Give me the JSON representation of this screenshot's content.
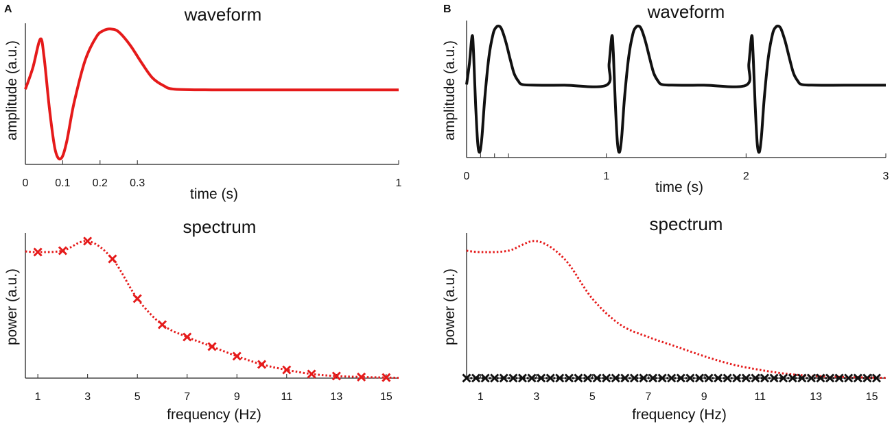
{
  "panels": {
    "a": "A",
    "b": "B"
  },
  "chart_data": [
    {
      "id": "A-waveform",
      "type": "line",
      "title": "waveform",
      "xlabel": "time (s)",
      "ylabel": "amplitude (a.u.)",
      "xlim": [
        0,
        1
      ],
      "ylim": [
        -1.05,
        0.92
      ],
      "xticks": [
        "0",
        "0.1",
        "0.2",
        "0.3",
        "1"
      ],
      "xtick_values": [
        0,
        0.1,
        0.2,
        0.3,
        1
      ],
      "color": "#e51a1a",
      "series": [
        {
          "name": "waveform",
          "x": [
            0,
            0.02,
            0.04,
            0.05,
            0.065,
            0.08,
            0.095,
            0.11,
            0.13,
            0.16,
            0.19,
            0.21,
            0.23,
            0.25,
            0.28,
            0.31,
            0.34,
            0.37,
            0.4,
            0.5,
            0.7,
            1.0
          ],
          "y": [
            0.0,
            0.3,
            0.7,
            0.45,
            -0.3,
            -0.85,
            -0.97,
            -0.75,
            -0.2,
            0.4,
            0.73,
            0.82,
            0.84,
            0.8,
            0.62,
            0.38,
            0.16,
            0.05,
            0.0,
            -0.01,
            -0.01,
            -0.01
          ]
        }
      ]
    },
    {
      "id": "B-waveform",
      "type": "line",
      "title": "waveform",
      "xlabel": "time (s)",
      "ylabel": "amplitude (a.u.)",
      "xlim": [
        0,
        3
      ],
      "ylim": [
        -1.05,
        0.92
      ],
      "xticks": [
        "0",
        "1",
        "2",
        "3"
      ],
      "xtick_values": [
        0,
        1,
        2,
        3
      ],
      "minor_ticks": [
        0.1,
        0.2,
        0.3
      ],
      "color": "#111111",
      "series": [
        {
          "name": "periodic waveform (period 1 s)",
          "x": [
            0,
            0.02,
            0.04,
            0.05,
            0.065,
            0.08,
            0.095,
            0.11,
            0.13,
            0.16,
            0.19,
            0.21,
            0.23,
            0.25,
            0.28,
            0.31,
            0.34,
            0.37,
            0.4,
            0.5,
            0.7,
            1.0
          ],
          "y": [
            0.0,
            0.3,
            0.7,
            0.45,
            -0.3,
            -0.85,
            -0.97,
            -0.75,
            -0.2,
            0.4,
            0.73,
            0.82,
            0.84,
            0.8,
            0.62,
            0.38,
            0.16,
            0.05,
            0.0,
            -0.01,
            -0.01,
            -0.01
          ],
          "repeat": 3
        }
      ]
    },
    {
      "id": "A-spectrum",
      "type": "line",
      "title": "spectrum",
      "xlabel": "frequency (Hz)",
      "ylabel": "power (a.u.)",
      "xlim": [
        0.5,
        15.5
      ],
      "ylim": [
        0,
        1.06
      ],
      "xticks": [
        "1",
        "3",
        "5",
        "7",
        "9",
        "11",
        "13",
        "15"
      ],
      "xtick_values": [
        1,
        3,
        5,
        7,
        9,
        11,
        13,
        15
      ],
      "color": "#e51a1a",
      "series": [
        {
          "name": "spectrum",
          "x": [
            1,
            2,
            3,
            4,
            5,
            6,
            7,
            8,
            9,
            10,
            11,
            12,
            13,
            14,
            15
          ],
          "y": [
            0.92,
            0.93,
            1.0,
            0.87,
            0.58,
            0.39,
            0.3,
            0.23,
            0.16,
            0.1,
            0.06,
            0.03,
            0.015,
            0.008,
            0.004
          ]
        }
      ]
    },
    {
      "id": "B-spectrum",
      "type": "line",
      "title": "spectrum",
      "xlabel": "frequency (Hz)",
      "ylabel": "power (a.u.)",
      "xlim": [
        0.5,
        15.5
      ],
      "ylim": [
        0,
        1.06
      ],
      "xticks": [
        "1",
        "3",
        "5",
        "7",
        "9",
        "11",
        "13",
        "15"
      ],
      "xtick_values": [
        1,
        3,
        5,
        7,
        9,
        11,
        13,
        15
      ],
      "envelope_color": "#e51a1a",
      "color": "#111111",
      "series": [
        {
          "name": "envelope",
          "x": [
            0.5,
            1,
            2,
            3,
            4,
            5,
            6,
            7,
            8,
            9,
            10,
            11,
            12,
            13,
            14,
            15.5
          ],
          "y": [
            0.93,
            0.92,
            0.93,
            1.0,
            0.87,
            0.58,
            0.39,
            0.3,
            0.23,
            0.16,
            0.1,
            0.06,
            0.03,
            0.015,
            0.008,
            0.002
          ]
        },
        {
          "name": "line spectrum",
          "x": [
            1,
            2,
            3,
            4,
            5,
            6,
            7,
            8,
            9,
            10,
            11,
            12,
            13,
            14,
            15
          ],
          "y": [
            0.92,
            0.93,
            1.0,
            0.87,
            0.58,
            0.39,
            0.3,
            0.23,
            0.16,
            0.1,
            0.06,
            0.03,
            0.015,
            0.008,
            0.004
          ],
          "between_peaks": 0
        }
      ]
    }
  ]
}
